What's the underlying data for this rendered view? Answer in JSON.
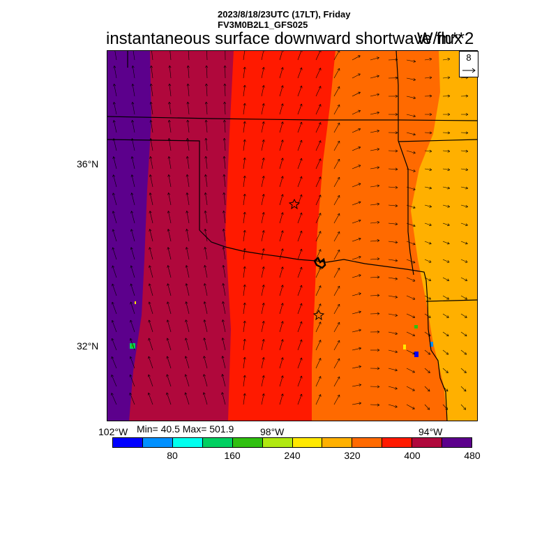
{
  "header": {
    "line1": "2023/8/18/23UTC (17LT), Friday",
    "line2": "FV3M0B2L1_GFS025",
    "title": "instantaneous surface downward shortwave flux",
    "units": "W/m**2"
  },
  "vector_legend": {
    "value": "8"
  },
  "axes": {
    "lat_labels": [
      "36°N",
      "32°N"
    ],
    "lon_labels": [
      "102°W",
      "98°W",
      "94°W"
    ]
  },
  "stats": {
    "text": "Min= 40.5 Max= 501.9"
  },
  "colorbar": {
    "colors": [
      "#0000ff",
      "#0090ff",
      "#00ffee",
      "#00d060",
      "#30c010",
      "#b0e810",
      "#ffe800",
      "#ffb000",
      "#ff6a00",
      "#ff1a00",
      "#b0083c",
      "#5c008c"
    ],
    "tick_labels": [
      "80",
      "160",
      "240",
      "320",
      "400",
      "480"
    ]
  },
  "map": {
    "field_bands": [
      "#5c008c",
      "#b0083c",
      "#ff1a00",
      "#ff6a00",
      "#ffb000"
    ],
    "markers": [
      "city-star",
      "city-star"
    ]
  }
}
